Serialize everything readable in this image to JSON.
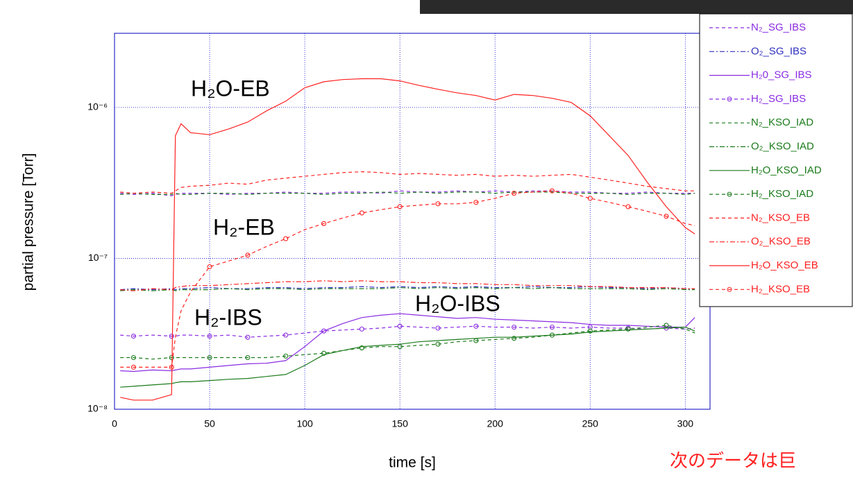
{
  "chart_data": {
    "type": "line",
    "xlabel": "time [s]",
    "ylabel": "partial pressure [Torr]",
    "log_y": true,
    "grid": true,
    "legend": "upper right",
    "xlim": [
      0,
      313
    ],
    "ylim": [
      1e-08,
      3.1e-06
    ],
    "xticks": [
      0,
      50,
      100,
      150,
      200,
      250,
      300
    ],
    "yticks": [
      {
        "value": 1e-08,
        "label": "10⁻⁸"
      },
      {
        "value": 1e-07,
        "label": "10⁻⁷"
      },
      {
        "value": 1e-06,
        "label": "10⁻⁶"
      }
    ],
    "annotations": [
      "H₂O-EB",
      "H₂-EB",
      "H₂-IBS",
      "H₂O-IBS"
    ],
    "note": "次のデータは巨",
    "x": [
      3,
      10,
      20,
      30,
      32,
      35,
      40,
      50,
      60,
      70,
      80,
      90,
      100,
      110,
      120,
      130,
      140,
      150,
      160,
      170,
      180,
      190,
      200,
      210,
      220,
      230,
      240,
      250,
      260,
      270,
      280,
      290,
      300,
      305
    ],
    "series": [
      {
        "name": "N₂_SG_IBS",
        "color": "#8a2be2",
        "style": "dash",
        "marker": "none",
        "values": [
          2.7e-07,
          2.65e-07,
          2.7e-07,
          2.6e-07,
          2.65e-07,
          2.7e-07,
          2.7e-07,
          2.7e-07,
          2.65e-07,
          2.7e-07,
          2.7e-07,
          2.75e-07,
          2.7e-07,
          2.7e-07,
          2.75e-07,
          2.75e-07,
          2.7e-07,
          2.8e-07,
          2.75e-07,
          2.75e-07,
          2.8e-07,
          2.75e-07,
          2.8e-07,
          2.75e-07,
          2.8e-07,
          2.8e-07,
          2.75e-07,
          2.75e-07,
          2.7e-07,
          2.7e-07,
          2.75e-07,
          2.7e-07,
          2.7e-07,
          2.7e-07
        ]
      },
      {
        "name": "O₂_SG_IBS",
        "color": "#3030c0",
        "style": "dashdot",
        "marker": "none",
        "values": [
          6.2e-08,
          6.3e-08,
          6.2e-08,
          6.3e-08,
          6.2e-08,
          6.3e-08,
          6.3e-08,
          6.4e-08,
          6.3e-08,
          6.3e-08,
          6.4e-08,
          6.4e-08,
          6.3e-08,
          6.4e-08,
          6.4e-08,
          6.5e-08,
          6.4e-08,
          6.5e-08,
          6.4e-08,
          6.5e-08,
          6.4e-08,
          6.5e-08,
          6.4e-08,
          6.4e-08,
          6.5e-08,
          6.4e-08,
          6.4e-08,
          6.5e-08,
          6.4e-08,
          6.4e-08,
          6.3e-08,
          6.4e-08,
          6.3e-08,
          6.3e-08
        ]
      },
      {
        "name": "H₂0_SG_IBS",
        "color": "#8a2be2",
        "style": "solid",
        "marker": "none",
        "values": [
          1.8e-08,
          1.78e-08,
          1.82e-08,
          1.8e-08,
          1.82e-08,
          1.85e-08,
          1.85e-08,
          1.9e-08,
          1.95e-08,
          2e-08,
          2.02e-08,
          2.1e-08,
          2.6e-08,
          3.3e-08,
          3.7e-08,
          4.05e-08,
          4.2e-08,
          4.3e-08,
          4.2e-08,
          4.1e-08,
          4e-08,
          4.05e-08,
          3.95e-08,
          3.9e-08,
          3.85e-08,
          3.8e-08,
          3.75e-08,
          3.65e-08,
          3.6e-08,
          3.6e-08,
          3.55e-08,
          3.5e-08,
          3.5e-08,
          4.05e-08
        ]
      },
      {
        "name": "H₂_SG_IBS",
        "color": "#8a2be2",
        "style": "dash",
        "marker": "o",
        "values": [
          3.1e-08,
          3.05e-08,
          3.1e-08,
          3.05e-08,
          3.05e-08,
          3.1e-08,
          3.1e-08,
          3.05e-08,
          3.1e-08,
          3e-08,
          3.05e-08,
          3.1e-08,
          3.2e-08,
          3.3e-08,
          3.35e-08,
          3.4e-08,
          3.45e-08,
          3.55e-08,
          3.5e-08,
          3.45e-08,
          3.5e-08,
          3.55e-08,
          3.5e-08,
          3.5e-08,
          3.45e-08,
          3.5e-08,
          3.45e-08,
          3.5e-08,
          3.45e-08,
          3.45e-08,
          3.4e-08,
          3.45e-08,
          3.4e-08,
          3.45e-08
        ]
      },
      {
        "name": "N₂_KSO_IAD",
        "color": "#1a7a1a",
        "style": "dash",
        "marker": "none",
        "values": [
          2.65e-07,
          2.7e-07,
          2.65e-07,
          2.65e-07,
          2.7e-07,
          2.65e-07,
          2.65e-07,
          2.7e-07,
          2.7e-07,
          2.65e-07,
          2.7e-07,
          2.7e-07,
          2.7e-07,
          2.65e-07,
          2.7e-07,
          2.7e-07,
          2.75e-07,
          2.7e-07,
          2.75e-07,
          2.7e-07,
          2.75e-07,
          2.75e-07,
          2.7e-07,
          2.75e-07,
          2.75e-07,
          2.75e-07,
          2.7e-07,
          2.7e-07,
          2.7e-07,
          2.65e-07,
          2.7e-07,
          2.7e-07,
          2.65e-07,
          2.7e-07
        ]
      },
      {
        "name": "O₂_KSO_IAD",
        "color": "#1a7a1a",
        "style": "dashdot",
        "marker": "none",
        "values": [
          6.1e-08,
          6.2e-08,
          6.1e-08,
          6.2e-08,
          6.1e-08,
          6.2e-08,
          6.2e-08,
          6.2e-08,
          6.3e-08,
          6.2e-08,
          6.3e-08,
          6.3e-08,
          6.2e-08,
          6.3e-08,
          6.3e-08,
          6.3e-08,
          6.3e-08,
          6.4e-08,
          6.3e-08,
          6.4e-08,
          6.3e-08,
          6.4e-08,
          6.3e-08,
          6.4e-08,
          6.3e-08,
          6.4e-08,
          6.3e-08,
          6.3e-08,
          6.3e-08,
          6.3e-08,
          6.2e-08,
          6.3e-08,
          6.2e-08,
          6.2e-08
        ]
      },
      {
        "name": "H₂O_KSO_IAD",
        "color": "#1a7a1a",
        "style": "solid",
        "marker": "none",
        "values": [
          1.4e-08,
          1.42e-08,
          1.45e-08,
          1.48e-08,
          1.5e-08,
          1.52e-08,
          1.52e-08,
          1.55e-08,
          1.58e-08,
          1.6e-08,
          1.65e-08,
          1.7e-08,
          1.95e-08,
          2.3e-08,
          2.45e-08,
          2.6e-08,
          2.65e-08,
          2.7e-08,
          2.8e-08,
          2.85e-08,
          2.9e-08,
          2.95e-08,
          3e-08,
          3e-08,
          3.05e-08,
          3.1e-08,
          3.15e-08,
          3.25e-08,
          3.3e-08,
          3.35e-08,
          3.4e-08,
          3.45e-08,
          3.5e-08,
          3.3e-08
        ]
      },
      {
        "name": "H₂_KSO_IAD",
        "color": "#1a7a1a",
        "style": "dash",
        "marker": "o",
        "values": [
          2.2e-08,
          2.2e-08,
          2.15e-08,
          2.2e-08,
          2.2e-08,
          2.2e-08,
          2.2e-08,
          2.2e-08,
          2.2e-08,
          2.2e-08,
          2.2e-08,
          2.25e-08,
          2.3e-08,
          2.35e-08,
          2.45e-08,
          2.55e-08,
          2.6e-08,
          2.6e-08,
          2.65e-08,
          2.7e-08,
          2.8e-08,
          2.85e-08,
          2.9e-08,
          2.95e-08,
          3e-08,
          3.1e-08,
          3.2e-08,
          3.3e-08,
          3.35e-08,
          3.4e-08,
          3.5e-08,
          3.6e-08,
          3.4e-08,
          3.2e-08
        ]
      },
      {
        "name": "N₂_KSO_EB",
        "color": "#ff2020",
        "style": "dash",
        "marker": "none",
        "values": [
          2.75e-07,
          2.7e-07,
          2.75e-07,
          2.7e-07,
          2.8e-07,
          2.95e-07,
          3e-07,
          3.05e-07,
          3.15e-07,
          3.1e-07,
          3.3e-07,
          3.4e-07,
          3.5e-07,
          3.6e-07,
          3.7e-07,
          3.75e-07,
          3.7e-07,
          3.6e-07,
          3.65e-07,
          3.6e-07,
          3.55e-07,
          3.6e-07,
          3.5e-07,
          3.55e-07,
          3.5e-07,
          3.55e-07,
          3.6e-07,
          3.45e-07,
          3.3e-07,
          3.15e-07,
          3e-07,
          2.9e-07,
          2.8e-07,
          2.8e-07
        ]
      },
      {
        "name": "O₂_KSO_EB",
        "color": "#ff2020",
        "style": "dashdot",
        "marker": "none",
        "values": [
          6.2e-08,
          6.1e-08,
          6.3e-08,
          6.2e-08,
          6.4e-08,
          6.5e-08,
          6.6e-08,
          6.6e-08,
          6.7e-08,
          6.8e-08,
          6.9e-08,
          7e-08,
          7e-08,
          7.1e-08,
          7e-08,
          7.1e-08,
          7e-08,
          7e-08,
          6.9e-08,
          6.9e-08,
          6.8e-08,
          6.8e-08,
          6.7e-08,
          6.7e-08,
          6.6e-08,
          6.6e-08,
          6.6e-08,
          6.5e-08,
          6.5e-08,
          6.4e-08,
          6.4e-08,
          6.4e-08,
          6.3e-08,
          6.3e-08
        ]
      },
      {
        "name": "H₂O_KSO_EB",
        "color": "#ff2020",
        "style": "solid",
        "marker": "none",
        "values": [
          1.2e-08,
          1.15e-08,
          1.15e-08,
          1.25e-08,
          6.5e-07,
          7.8e-07,
          6.8e-07,
          6.6e-07,
          7.2e-07,
          8e-07,
          9.5e-07,
          1.1e-06,
          1.35e-06,
          1.48e-06,
          1.53e-06,
          1.55e-06,
          1.55e-06,
          1.5e-06,
          1.4e-06,
          1.32e-06,
          1.25e-06,
          1.2e-06,
          1.12e-06,
          1.22e-06,
          1.2e-06,
          1.15e-06,
          1.08e-06,
          8.8e-07,
          6.5e-07,
          4.8e-07,
          3.2e-07,
          2.2e-07,
          1.6e-07,
          1.45e-07
        ]
      },
      {
        "name": "H₂_KSO_EB",
        "color": "#ff2020",
        "style": "dash",
        "marker": "o",
        "values": [
          1.9e-08,
          1.9e-08,
          1.9e-08,
          1.9e-08,
          3e-08,
          4.5e-08,
          6e-08,
          8.8e-08,
          9.6e-08,
          1.05e-07,
          1.2e-07,
          1.35e-07,
          1.55e-07,
          1.7e-07,
          1.85e-07,
          2e-07,
          2.1e-07,
          2.2e-07,
          2.25e-07,
          2.3e-07,
          2.3e-07,
          2.35e-07,
          2.5e-07,
          2.7e-07,
          2.75e-07,
          2.8e-07,
          2.7e-07,
          2.5e-07,
          2.35e-07,
          2.2e-07,
          2.05e-07,
          1.9e-07,
          1.7e-07,
          1.65e-07
        ]
      }
    ]
  }
}
